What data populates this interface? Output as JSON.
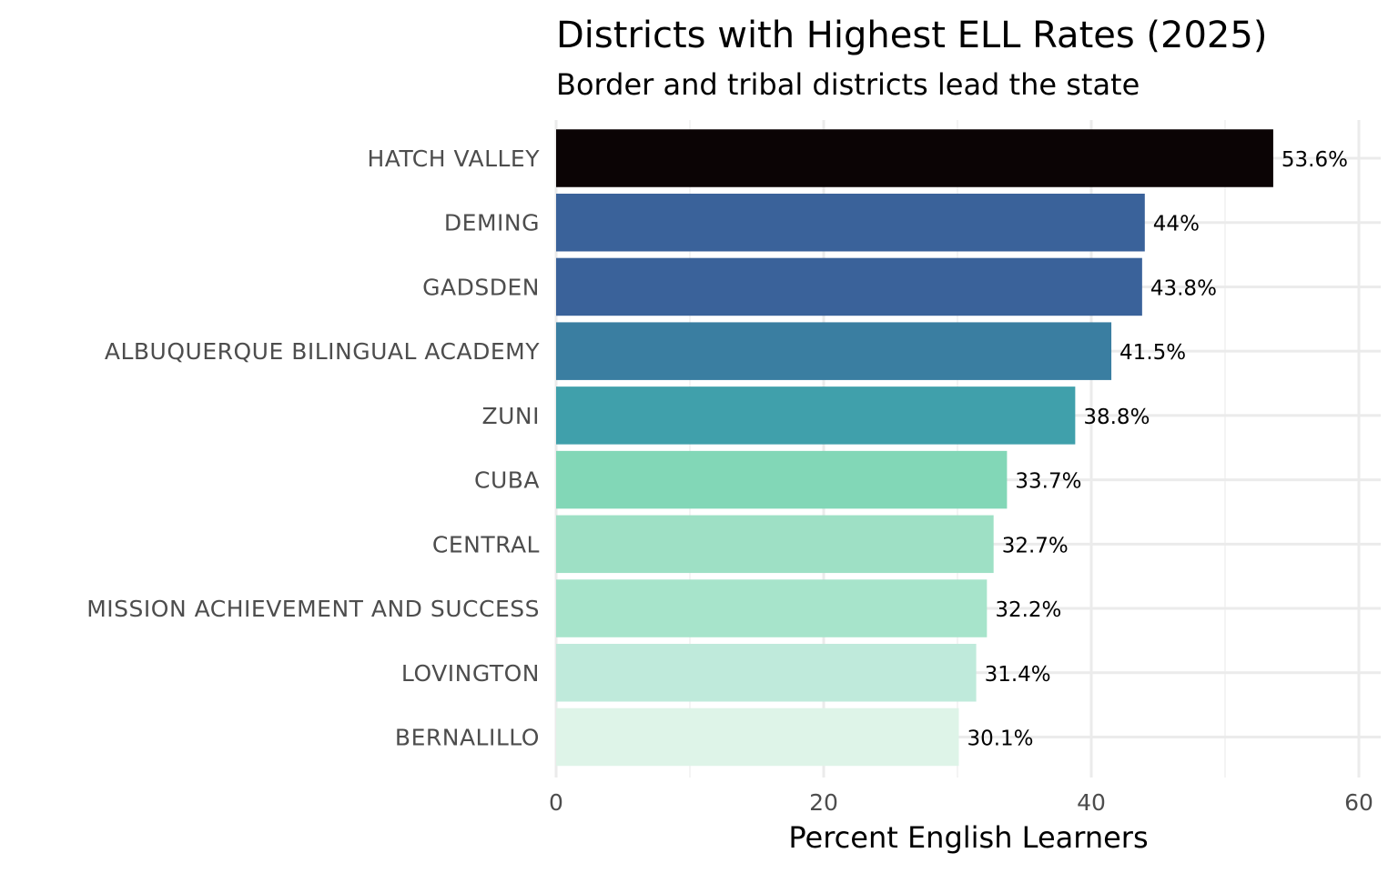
{
  "chart_data": {
    "type": "bar",
    "orientation": "horizontal",
    "title": "Districts with Highest ELL Rates (2025)",
    "subtitle": "Border and tribal districts lead the state",
    "xlabel": "Percent English Learners",
    "ylabel": "",
    "xlim": [
      0,
      60
    ],
    "x_ticks": [
      0,
      20,
      40,
      60
    ],
    "grid": true,
    "legend": "none",
    "categories": [
      "HATCH VALLEY",
      "DEMING",
      "GADSDEN",
      "ALBUQUERQUE BILINGUAL ACADEMY",
      "ZUNI",
      "CUBA",
      "CENTRAL",
      "MISSION ACHIEVEMENT AND SUCCESS",
      "LOVINGTON",
      "BERNALILLO"
    ],
    "values": [
      53.6,
      44,
      43.8,
      41.5,
      38.8,
      33.7,
      32.7,
      32.2,
      31.4,
      30.1
    ],
    "value_labels": [
      "53.6%",
      "44%",
      "43.8%",
      "41.5%",
      "38.8%",
      "33.7%",
      "32.7%",
      "32.2%",
      "31.4%",
      "30.1%"
    ],
    "colors": [
      "#0b0405",
      "#3a629a",
      "#3a629a",
      "#3a7ea1",
      "#40a0ab",
      "#82d7b7",
      "#9ee0c5",
      "#a7e4cb",
      "#bfeadb",
      "#def4e8"
    ]
  }
}
